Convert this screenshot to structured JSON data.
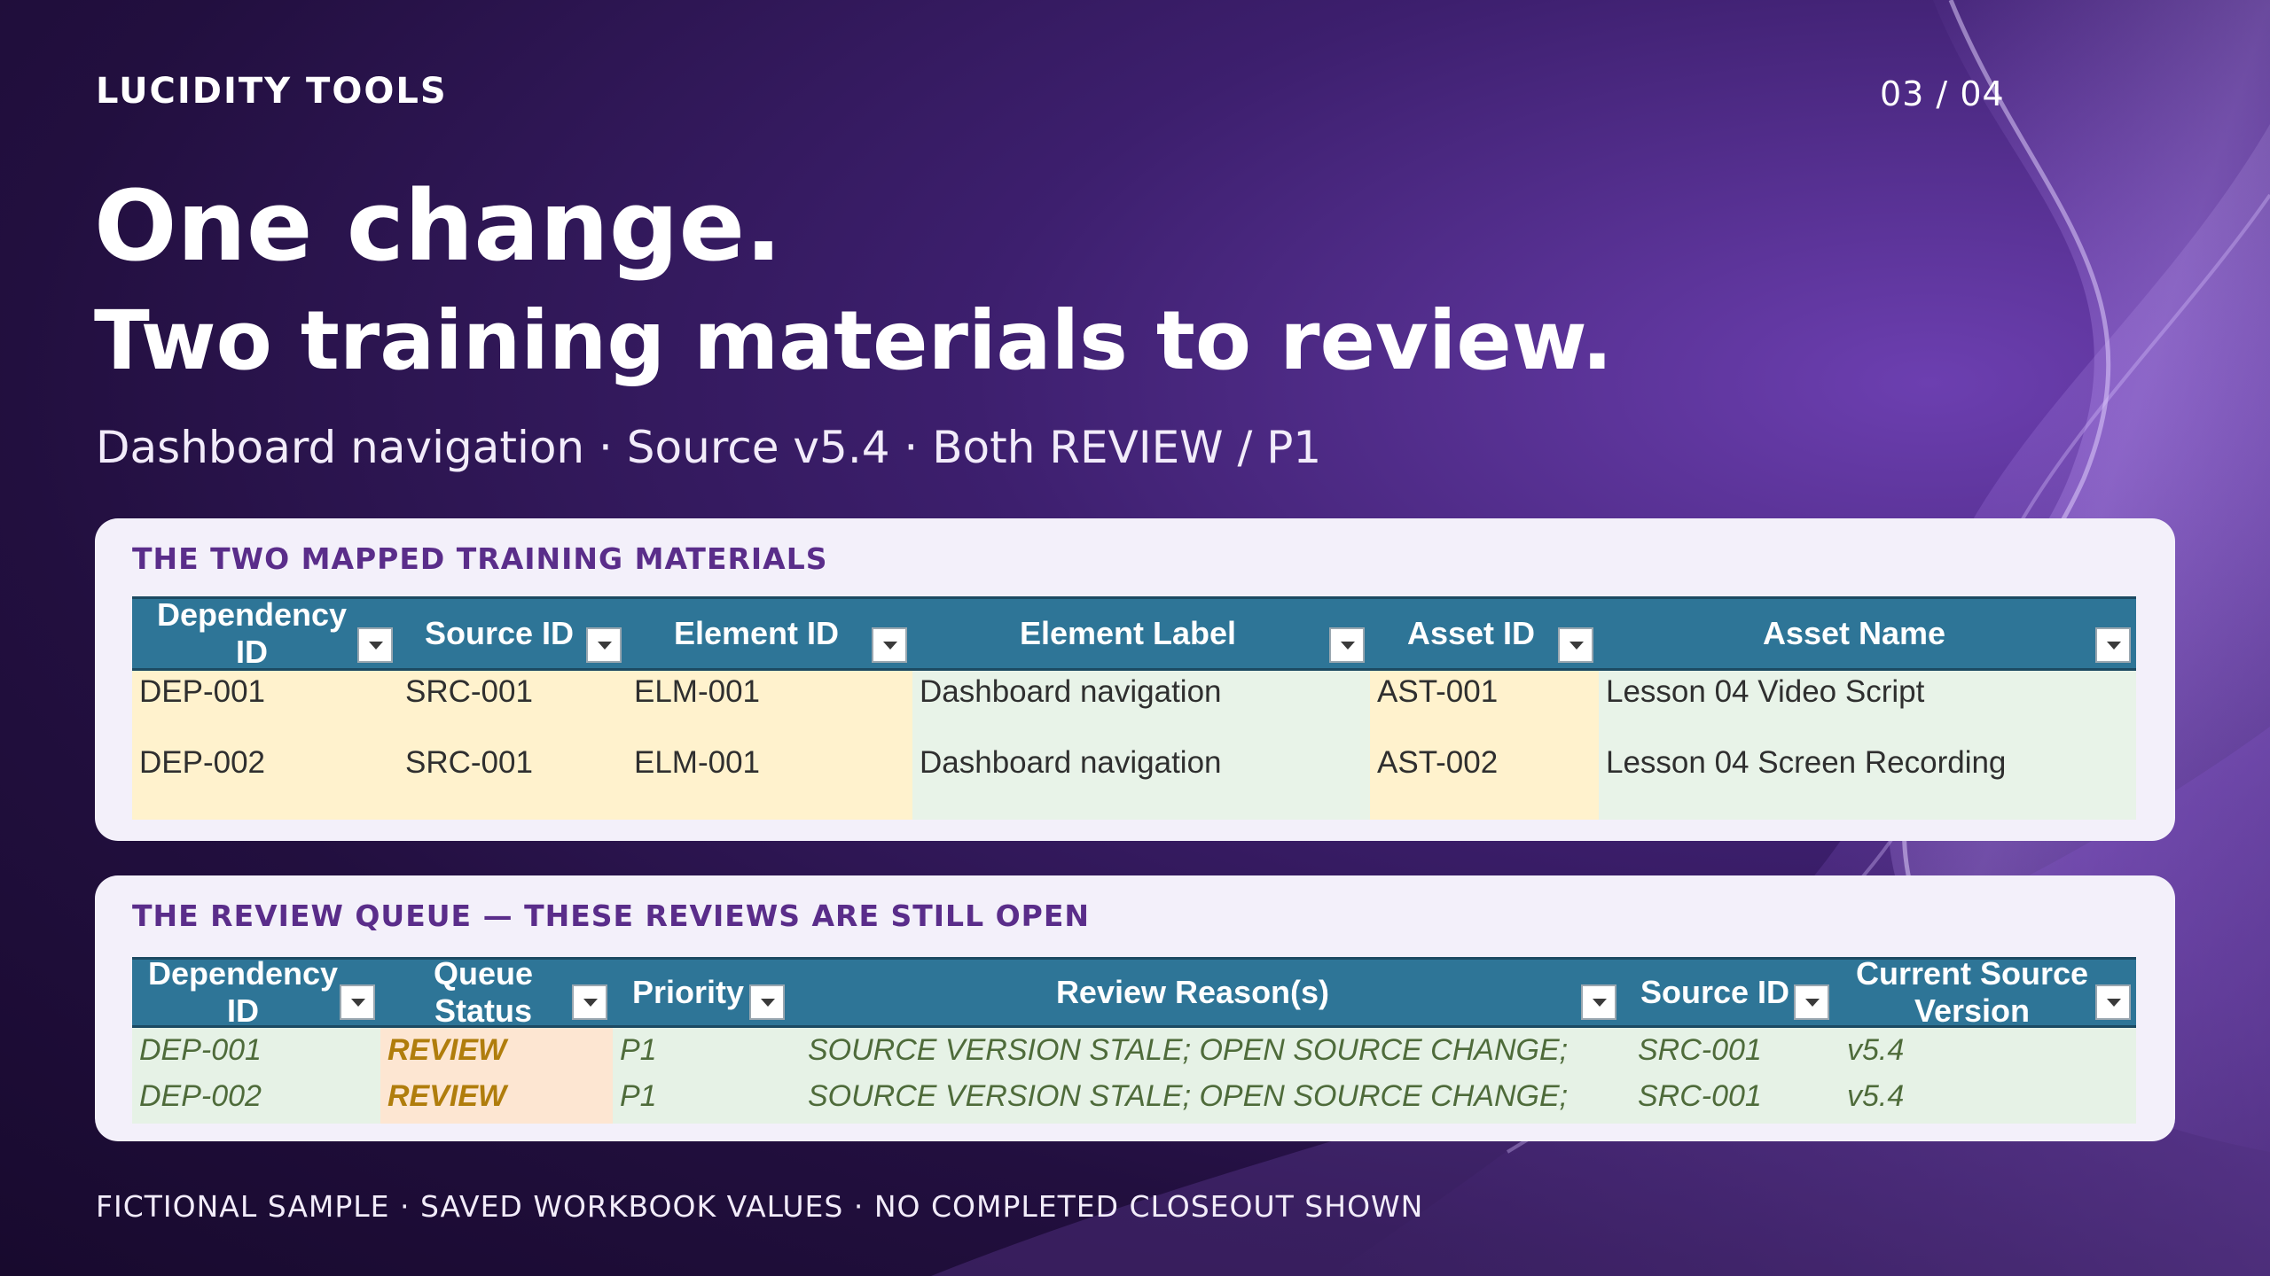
{
  "brand": "LUCIDITY TOOLS",
  "page_indicator": "03 / 04",
  "title_line1": "One change.",
  "title_line2": "Two training materials to review.",
  "subtitle": "Dashboard navigation · Source v5.4 · Both REVIEW / P1",
  "colors": {
    "header_blue": "#2e7597",
    "cell_yellow": "#fff2cd",
    "cell_green": "#e8f3e8",
    "cell_orange": "#fde6d2",
    "status_text": "#b07d0c",
    "card_title": "#5a2d8a"
  },
  "mapped_table": {
    "section_title": "THE TWO MAPPED TRAINING MATERIALS",
    "headers": [
      {
        "line1": "Dependency",
        "line2": "ID"
      },
      {
        "line1": "Source ID",
        "line2": ""
      },
      {
        "line1": "Element ID",
        "line2": ""
      },
      {
        "line1": "Element Label",
        "line2": ""
      },
      {
        "line1": "Asset ID",
        "line2": ""
      },
      {
        "line1": "Asset Name",
        "line2": ""
      }
    ],
    "rows": [
      [
        "DEP-001",
        "SRC-001",
        "ELM-001",
        "Dashboard navigation",
        "AST-001",
        "Lesson 04 Video Script"
      ],
      [
        "DEP-002",
        "SRC-001",
        "ELM-001",
        "Dashboard navigation",
        "AST-002",
        "Lesson 04 Screen Recording"
      ]
    ],
    "filter_icon": "dropdown-filter-icon"
  },
  "queue_table": {
    "section_title": "THE REVIEW QUEUE — THESE REVIEWS ARE STILL OPEN",
    "headers": [
      {
        "line1": "Dependency",
        "line2": "ID"
      },
      {
        "line1": "Queue Status",
        "line2": ""
      },
      {
        "line1": "Priority",
        "line2": ""
      },
      {
        "line1": "Review Reason(s)",
        "line2": ""
      },
      {
        "line1": "Source ID",
        "line2": ""
      },
      {
        "line1": "Current Source",
        "line2": "Version"
      }
    ],
    "rows": [
      [
        "DEP-001",
        "REVIEW",
        "P1",
        "SOURCE VERSION STALE; OPEN SOURCE CHANGE;",
        "SRC-001",
        "v5.4"
      ],
      [
        "DEP-002",
        "REVIEW",
        "P1",
        "SOURCE VERSION STALE; OPEN SOURCE CHANGE;",
        "SRC-001",
        "v5.4"
      ]
    ]
  },
  "footer": "FICTIONAL SAMPLE · SAVED WORKBOOK VALUES · NO COMPLETED CLOSEOUT SHOWN"
}
